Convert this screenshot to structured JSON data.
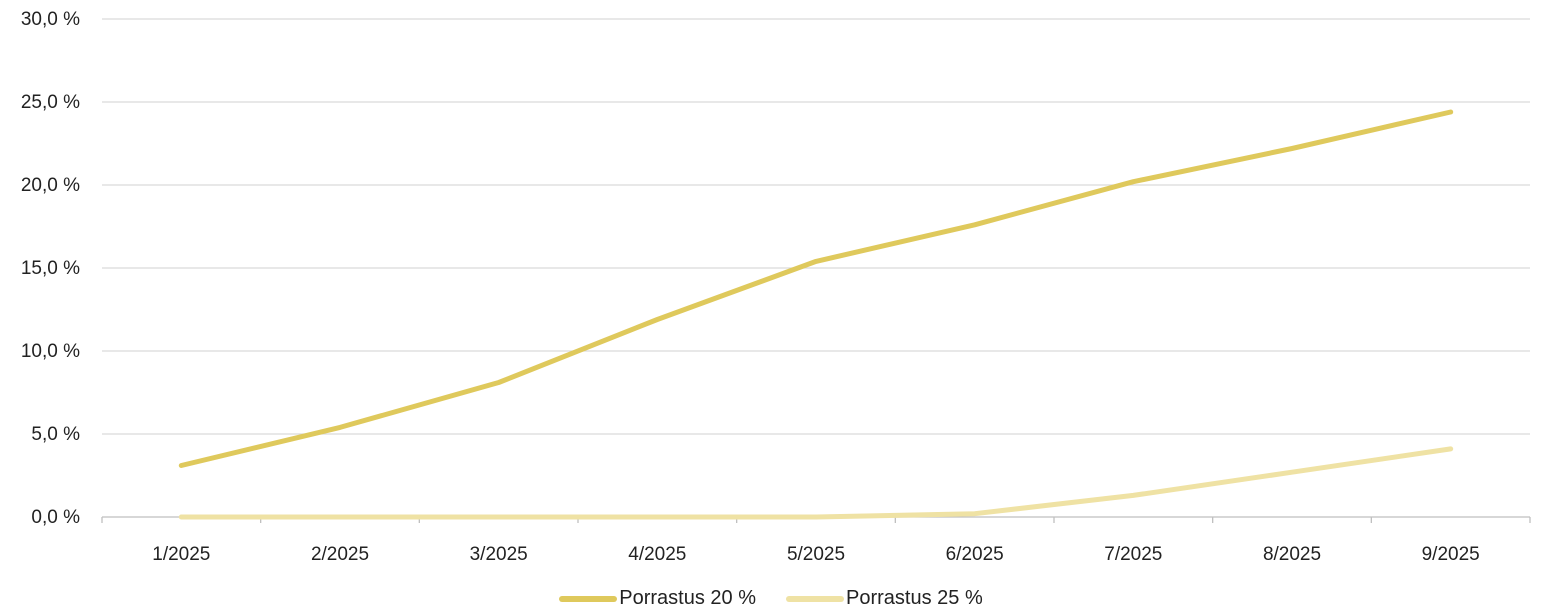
{
  "chart_data": {
    "type": "line",
    "title": "",
    "xlabel": "",
    "ylabel": "",
    "categories": [
      "1/2025",
      "2/2025",
      "3/2025",
      "4/2025",
      "5/2025",
      "6/2025",
      "7/2025",
      "8/2025",
      "9/2025"
    ],
    "y_ticks": [
      "0,0 %",
      "5,0 %",
      "10,0 %",
      "15,0 %",
      "20,0 %",
      "25,0 %",
      "30,0 %"
    ],
    "ylim": [
      0,
      30
    ],
    "grid": true,
    "legend_position": "bottom",
    "series": [
      {
        "name": "Porrastus 20 %",
        "color": "#dfc95c",
        "values": [
          3.1,
          5.4,
          8.1,
          11.9,
          15.4,
          17.6,
          20.2,
          22.2,
          24.4
        ]
      },
      {
        "name": "Porrastus 25 %",
        "color": "#efe2a4",
        "values": [
          0.0,
          0.0,
          0.0,
          0.0,
          0.0,
          0.2,
          1.3,
          2.7,
          4.1
        ]
      }
    ]
  }
}
